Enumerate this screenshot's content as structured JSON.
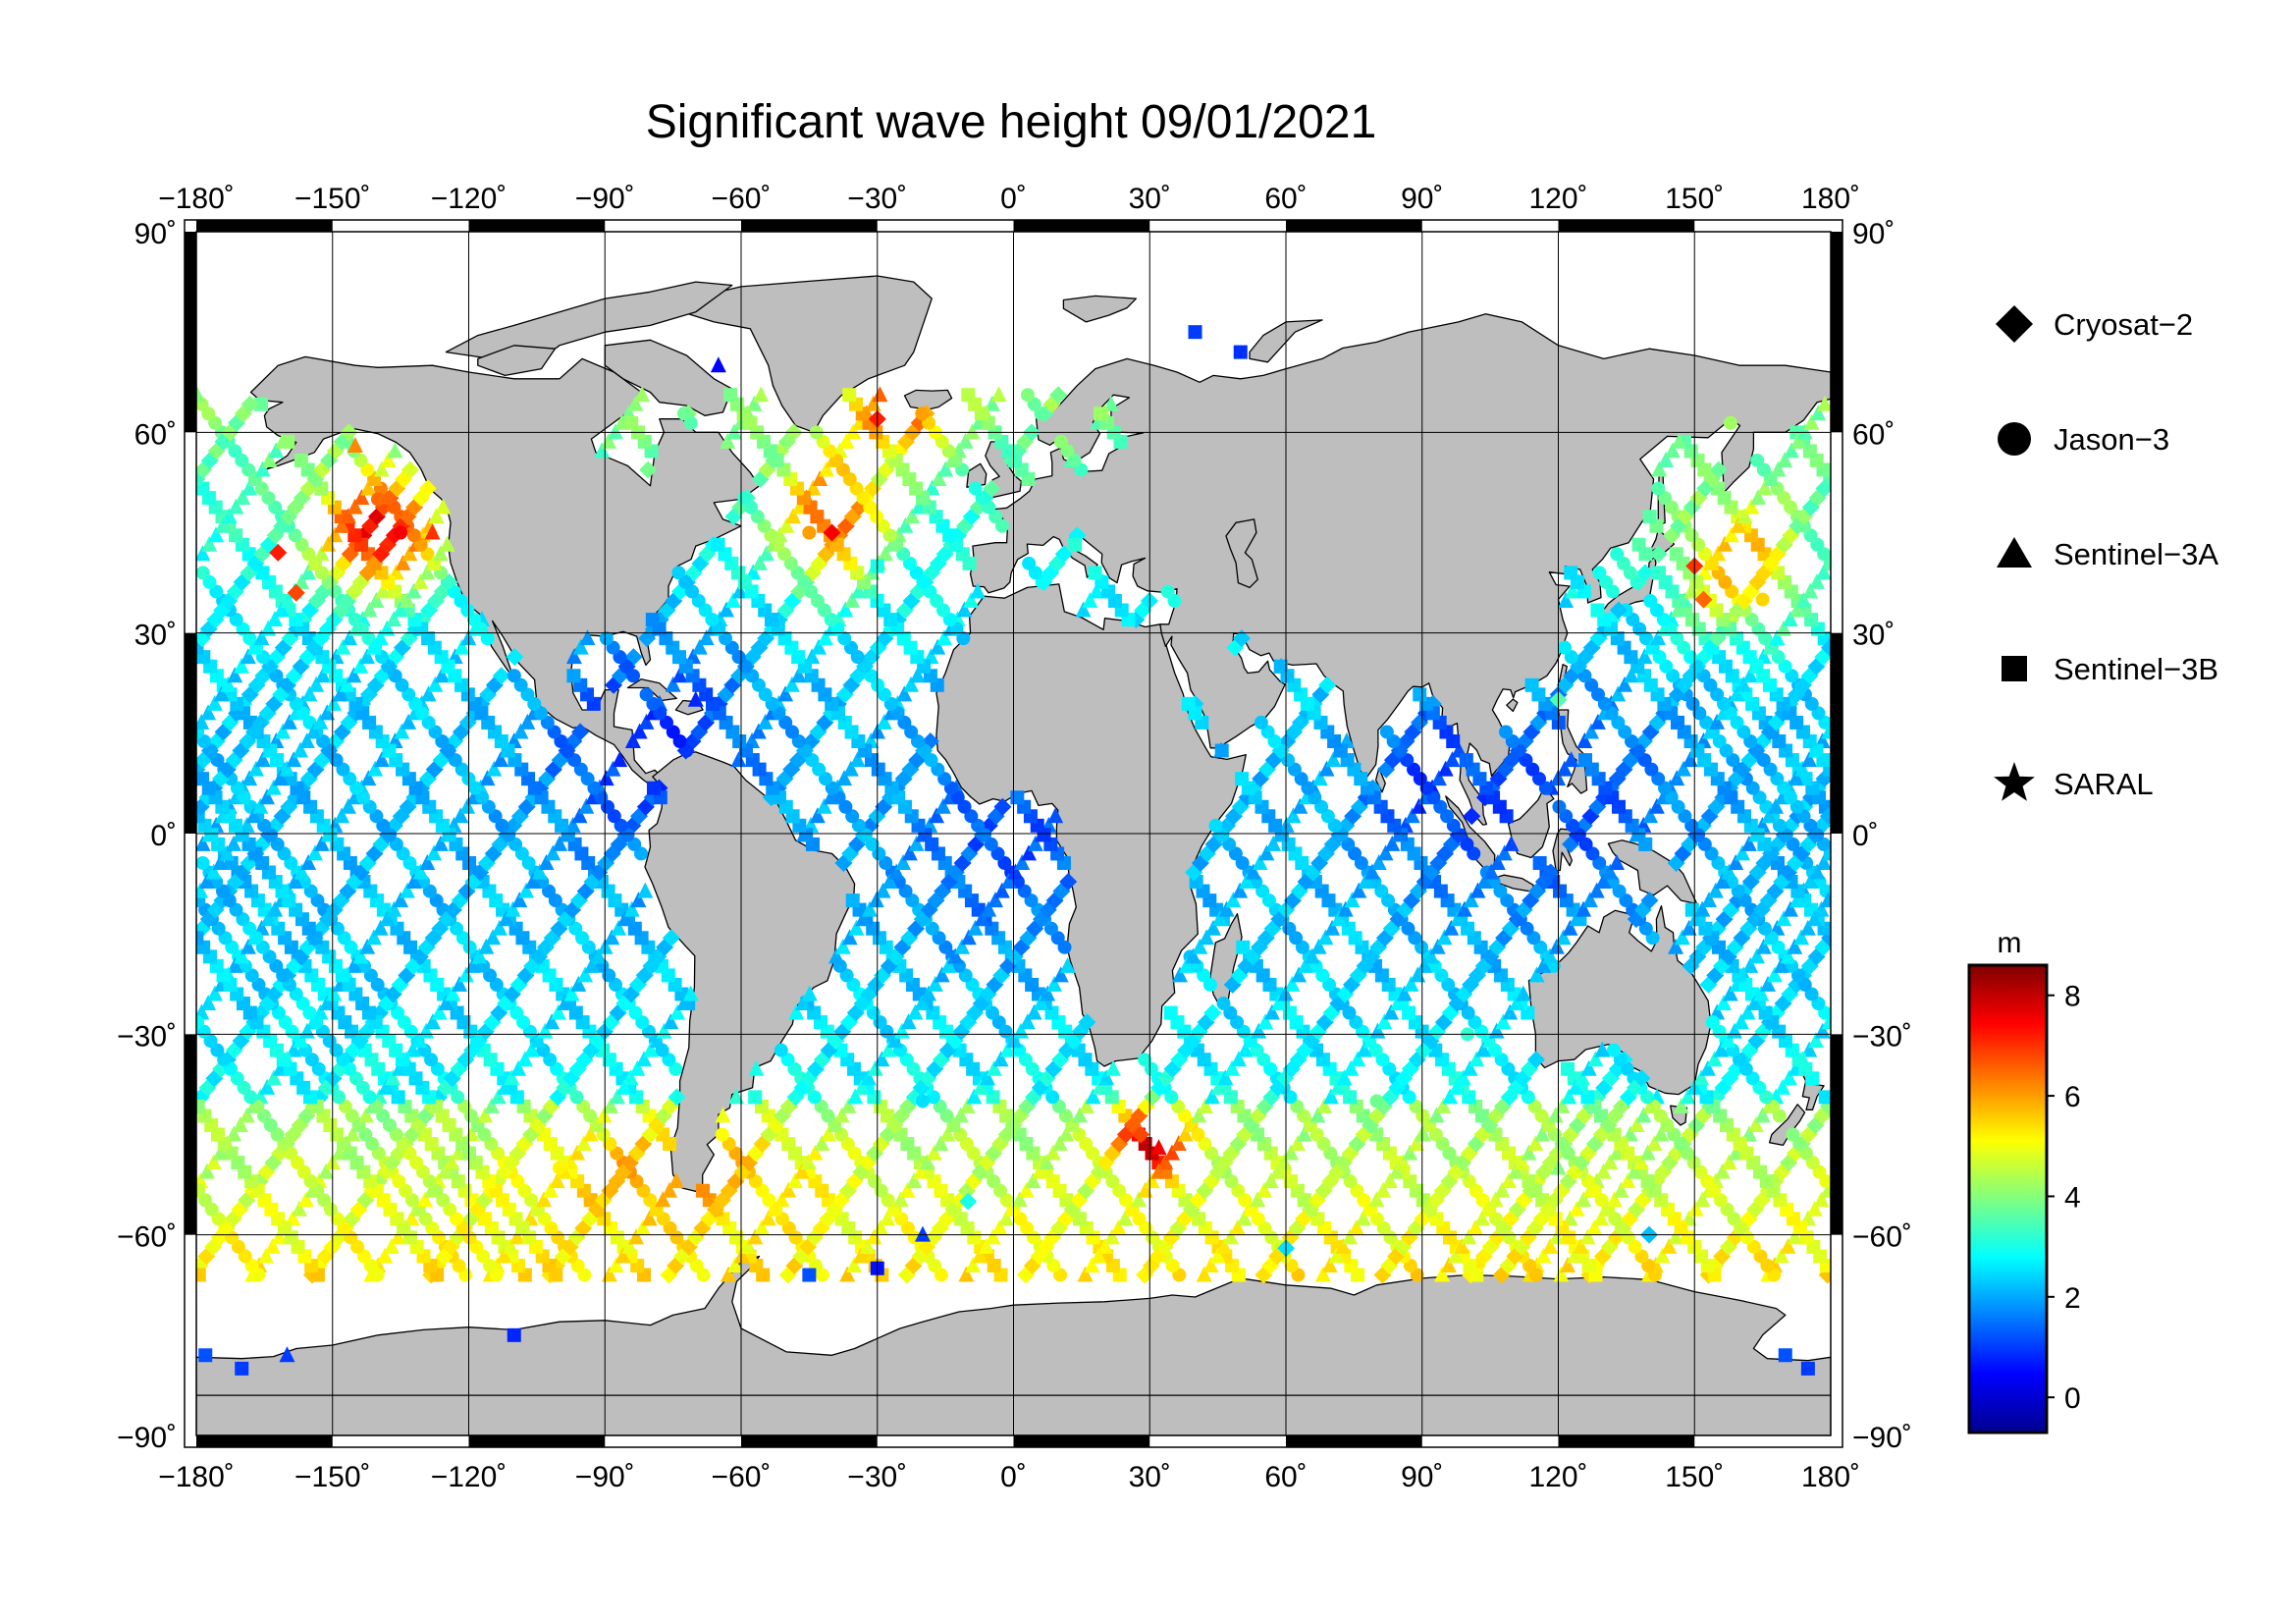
{
  "title": "Significant wave height 09/01/2021",
  "map": {
    "projection": "equirectangular",
    "lon_range": [
      -180,
      180
    ],
    "lat_range": [
      -90,
      90
    ],
    "grid_step_lon": 30,
    "grid_step_lat": 30,
    "land_color": "#bebebe",
    "ocean_color": "#ffffff",
    "lon_ticks": [
      "−180˚",
      "−150˚",
      "−120˚",
      "−90˚",
      "−60˚",
      "−30˚",
      "0˚",
      "30˚",
      "60˚",
      "90˚",
      "120˚",
      "150˚",
      "180˚"
    ],
    "lat_ticks_left": [
      "90˚",
      "60˚",
      "30˚",
      "0˚",
      "−30˚",
      "−60˚",
      "−90˚"
    ],
    "lat_ticks_right": [
      "90˚",
      "60˚",
      "30˚",
      "0˚",
      "−30˚",
      "−60˚",
      "−90˚"
    ]
  },
  "legend": {
    "items": [
      {
        "label": "Cryosat−2",
        "marker": "diamond-icon"
      },
      {
        "label": "Jason−3",
        "marker": "circle-icon"
      },
      {
        "label": "Sentinel−3A",
        "marker": "triangle-icon"
      },
      {
        "label": "Sentinel−3B",
        "marker": "square-icon"
      },
      {
        "label": "SARAL",
        "marker": "star-icon"
      }
    ]
  },
  "colorbar": {
    "unit": "m",
    "min": -0.7,
    "max": 8.6,
    "tick_values": [
      0,
      2,
      4,
      6,
      8
    ],
    "tick_labels": [
      "0",
      "2",
      "4",
      "6",
      "8"
    ],
    "colormap": [
      "#00008f",
      "#0000ff",
      "#0080ff",
      "#00ffff",
      "#80ff80",
      "#ffff00",
      "#ff8000",
      "#ff0000",
      "#800000"
    ]
  },
  "chart_data": {
    "type": "scatter",
    "title": "Significant wave height 09/01/2021",
    "xlabel": "",
    "ylabel": "",
    "xlim": [
      -180,
      180
    ],
    "ylim": [
      -90,
      90
    ],
    "value_label": "m",
    "series": [
      {
        "name": "Cryosat−2",
        "marker": "diamond",
        "points": [
          [
            -162,
            42,
            7.2
          ],
          [
            -158,
            36,
            6.8
          ],
          [
            -40,
            45,
            7.5
          ],
          [
            -30,
            62,
            7.2
          ],
          [
            28,
            -45,
            6.8
          ],
          [
            150,
            40,
            7.0
          ],
          [
            152,
            35,
            6.5
          ],
          [
            -10,
            -55,
            3.0
          ],
          [
            60,
            -62,
            2.5
          ],
          [
            140,
            -60,
            2.2
          ],
          [
            120,
            20,
            3.5
          ]
        ]
      },
      {
        "name": "Jason−3",
        "marker": "circle",
        "points": [
          [
            -140,
            50,
            6.5
          ],
          [
            -135,
            45,
            7.5
          ],
          [
            -45,
            45,
            6.0
          ],
          [
            165,
            35,
            5.5
          ],
          [
            -100,
            -50,
            5.2
          ],
          [
            -20,
            -40,
            2.5
          ],
          [
            80,
            -40,
            3.8
          ],
          [
            100,
            -30,
            3.2
          ]
        ]
      },
      {
        "name": "Sentinel−3A",
        "marker": "triangle",
        "points": [
          [
            -145,
            58,
            6.2
          ],
          [
            -128,
            45,
            7.0
          ],
          [
            -65,
            70,
            0.5
          ],
          [
            -70,
            20,
            0.8
          ],
          [
            32,
            -47,
            7.5
          ],
          [
            -20,
            -60,
            1.0
          ],
          [
            90,
            -45,
            4.2
          ],
          [
            120,
            -50,
            4.0
          ],
          [
            -160,
            -78,
            1.0
          ]
        ]
      },
      {
        "name": "Sentinel−3B",
        "marker": "square",
        "points": [
          [
            -178,
            -78,
            1.2
          ],
          [
            -170,
            -80,
            1.0
          ],
          [
            -110,
            -75,
            0.8
          ],
          [
            -45,
            -66,
            1.2
          ],
          [
            -30,
            -65,
            0.6
          ],
          [
            40,
            75,
            1.0
          ],
          [
            50,
            72,
            0.9
          ],
          [
            170,
            -78,
            1.2
          ],
          [
            175,
            -80,
            1.0
          ],
          [
            -30,
            40,
            3.0
          ]
        ]
      },
      {
        "name": "SARAL",
        "marker": "star",
        "points": []
      }
    ]
  }
}
